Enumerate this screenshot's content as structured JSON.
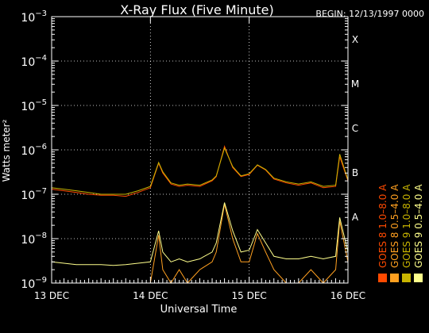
{
  "chart_data": {
    "type": "line",
    "title": "X-Ray Flux (Five Minute)",
    "begin_label": "BEGIN: 12/13/1997 0000",
    "xlabel": "Universal Time",
    "ylabel": "Watts meter²",
    "x_unit": "date",
    "xlim": [
      "1997-12-13T00:00",
      "1997-12-16T00:00"
    ],
    "x_ticks": [
      {
        "label": "13 DEC",
        "t": 0
      },
      {
        "label": "14 DEC",
        "t": 1
      },
      {
        "label": "15 DEC",
        "t": 2
      },
      {
        "label": "16 DEC",
        "t": 3
      }
    ],
    "y_scale": "log",
    "ylim": [
      1e-09,
      0.001
    ],
    "y_ticks": [
      {
        "base": "10",
        "exp": "−9",
        "value": 1e-09
      },
      {
        "base": "10",
        "exp": "−8",
        "value": 1e-08
      },
      {
        "base": "10",
        "exp": "−7",
        "value": 1e-07
      },
      {
        "base": "10",
        "exp": "−6",
        "value": 1e-06
      },
      {
        "base": "10",
        "exp": "−5",
        "value": 1e-05
      },
      {
        "base": "10",
        "exp": "−4",
        "value": 0.0001
      },
      {
        "base": "10",
        "exp": "−3",
        "value": 0.001
      }
    ],
    "flare_classes": [
      {
        "label": "A",
        "value": 1e-08
      },
      {
        "label": "B",
        "value": 1e-07
      },
      {
        "label": "C",
        "value": 1e-06
      },
      {
        "label": "M",
        "value": 1e-05
      },
      {
        "label": "X",
        "value": 0.0001
      }
    ],
    "grid": true,
    "legend_position": "right",
    "series": [
      {
        "name": "GOES 8 1.0–8.0 A",
        "color": "#ff4a00",
        "x": [
          "1997-12-13T00:00",
          "1997-12-13T03:00",
          "1997-12-13T06:00",
          "1997-12-13T09:00",
          "1997-12-13T12:00",
          "1997-12-13T15:00",
          "1997-12-13T18:00",
          "1997-12-13T21:00",
          "1997-12-14T00:00",
          "1997-12-14T02:00",
          "1997-12-14T03:00",
          "1997-12-14T05:00",
          "1997-12-14T07:00",
          "1997-12-14T09:00",
          "1997-12-14T12:00",
          "1997-12-14T15:00",
          "1997-12-14T16:00",
          "1997-12-14T18:00",
          "1997-12-14T20:00",
          "1997-12-14T22:00",
          "1997-12-15T00:00",
          "1997-12-15T02:00",
          "1997-12-15T04:00",
          "1997-12-15T06:00",
          "1997-12-15T09:00",
          "1997-12-15T12:00",
          "1997-12-15T15:00",
          "1997-12-15T18:00",
          "1997-12-15T21:00",
          "1997-12-15T22:00",
          "1997-12-16T00:00"
        ],
        "y": [
          1.3e-07,
          1.2e-07,
          1.1e-07,
          1e-07,
          9.5e-08,
          9.5e-08,
          9e-08,
          1.1e-07,
          1.4e-07,
          5e-07,
          3e-07,
          1.7e-07,
          1.5e-07,
          1.6e-07,
          1.5e-07,
          2e-07,
          2.5e-07,
          1.2e-06,
          4e-07,
          2.5e-07,
          2.8e-07,
          4.5e-07,
          3.5e-07,
          2.2e-07,
          1.8e-07,
          1.6e-07,
          1.8e-07,
          1.4e-07,
          1.5e-07,
          7e-07,
          2e-07
        ]
      },
      {
        "name": "GOES 8 0.5–4.0 A",
        "color": "#ffa020",
        "x": [
          "1997-12-13T00:00",
          "1997-12-13T03:00",
          "1997-12-13T06:00",
          "1997-12-13T09:00",
          "1997-12-13T12:00",
          "1997-12-13T15:00",
          "1997-12-13T18:00",
          "1997-12-13T21:00",
          "1997-12-14T00:00",
          "1997-12-14T02:00",
          "1997-12-14T03:00",
          "1997-12-14T05:00",
          "1997-12-14T07:00",
          "1997-12-14T09:00",
          "1997-12-14T12:00",
          "1997-12-14T15:00",
          "1997-12-14T16:00",
          "1997-12-14T18:00",
          "1997-12-14T20:00",
          "1997-12-14T22:00",
          "1997-12-15T00:00",
          "1997-12-15T02:00",
          "1997-12-15T04:00",
          "1997-12-15T06:00",
          "1997-12-15T09:00",
          "1997-12-15T12:00",
          "1997-12-15T15:00",
          "1997-12-15T18:00",
          "1997-12-15T21:00",
          "1997-12-15T22:00",
          "1997-12-16T00:00"
        ],
        "y": [
          1e-09,
          1e-09,
          1e-09,
          1e-09,
          1e-09,
          1e-09,
          1e-09,
          1e-09,
          1e-09,
          1.2e-08,
          2e-09,
          1e-09,
          2e-09,
          1e-09,
          2e-09,
          3e-09,
          5e-09,
          6e-08,
          1e-08,
          3e-09,
          3e-09,
          1.3e-08,
          5e-09,
          2e-09,
          1e-09,
          1e-09,
          2e-09,
          1e-09,
          2e-09,
          2.5e-08,
          3e-09
        ]
      },
      {
        "name": "GOES 9 1.0–8.0 A",
        "color": "#c8b400",
        "x": [
          "1997-12-13T00:00",
          "1997-12-13T03:00",
          "1997-12-13T06:00",
          "1997-12-13T09:00",
          "1997-12-13T12:00",
          "1997-12-13T15:00",
          "1997-12-13T18:00",
          "1997-12-13T21:00",
          "1997-12-14T00:00",
          "1997-12-14T02:00",
          "1997-12-14T03:00",
          "1997-12-14T05:00",
          "1997-12-14T07:00",
          "1997-12-14T09:00",
          "1997-12-14T12:00",
          "1997-12-14T15:00",
          "1997-12-14T16:00",
          "1997-12-14T18:00",
          "1997-12-14T20:00",
          "1997-12-14T22:00",
          "1997-12-15T00:00",
          "1997-12-15T02:00",
          "1997-12-15T04:00",
          "1997-12-15T06:00",
          "1997-12-15T09:00",
          "1997-12-15T12:00",
          "1997-12-15T15:00",
          "1997-12-15T18:00",
          "1997-12-15T21:00",
          "1997-12-15T22:00",
          "1997-12-16T00:00"
        ],
        "y": [
          1.4e-07,
          1.3e-07,
          1.2e-07,
          1.1e-07,
          1e-07,
          1e-07,
          1e-07,
          1.2e-07,
          1.5e-07,
          5.2e-07,
          3.2e-07,
          1.8e-07,
          1.6e-07,
          1.7e-07,
          1.6e-07,
          2.1e-07,
          2.6e-07,
          1.1e-06,
          4.2e-07,
          2.6e-07,
          2.9e-07,
          4.6e-07,
          3.6e-07,
          2.3e-07,
          1.9e-07,
          1.7e-07,
          1.9e-07,
          1.5e-07,
          1.6e-07,
          8e-07,
          2.1e-07
        ]
      },
      {
        "name": "GOES 9 0.5–4.0 A",
        "color": "#ffff8c",
        "x": [
          "1997-12-13T00:00",
          "1997-12-13T03:00",
          "1997-12-13T06:00",
          "1997-12-13T09:00",
          "1997-12-13T12:00",
          "1997-12-13T15:00",
          "1997-12-13T18:00",
          "1997-12-13T21:00",
          "1997-12-14T00:00",
          "1997-12-14T02:00",
          "1997-12-14T03:00",
          "1997-12-14T05:00",
          "1997-12-14T07:00",
          "1997-12-14T09:00",
          "1997-12-14T12:00",
          "1997-12-14T15:00",
          "1997-12-14T16:00",
          "1997-12-14T18:00",
          "1997-12-14T20:00",
          "1997-12-14T22:00",
          "1997-12-15T00:00",
          "1997-12-15T02:00",
          "1997-12-15T04:00",
          "1997-12-15T06:00",
          "1997-12-15T09:00",
          "1997-12-15T12:00",
          "1997-12-15T15:00",
          "1997-12-15T18:00",
          "1997-12-15T21:00",
          "1997-12-15T22:00",
          "1997-12-16T00:00"
        ],
        "y": [
          3e-09,
          2.8e-09,
          2.6e-09,
          2.6e-09,
          2.6e-09,
          2.5e-09,
          2.6e-09,
          2.8e-09,
          3e-09,
          1.5e-08,
          5e-09,
          3e-09,
          3.5e-09,
          3e-09,
          3.5e-09,
          5e-09,
          8e-09,
          6.5e-08,
          1.5e-08,
          5e-09,
          5.5e-09,
          1.6e-08,
          8e-09,
          4e-09,
          3.5e-09,
          3.5e-09,
          4e-09,
          3.5e-09,
          4e-09,
          3e-08,
          5e-09
        ]
      }
    ]
  }
}
